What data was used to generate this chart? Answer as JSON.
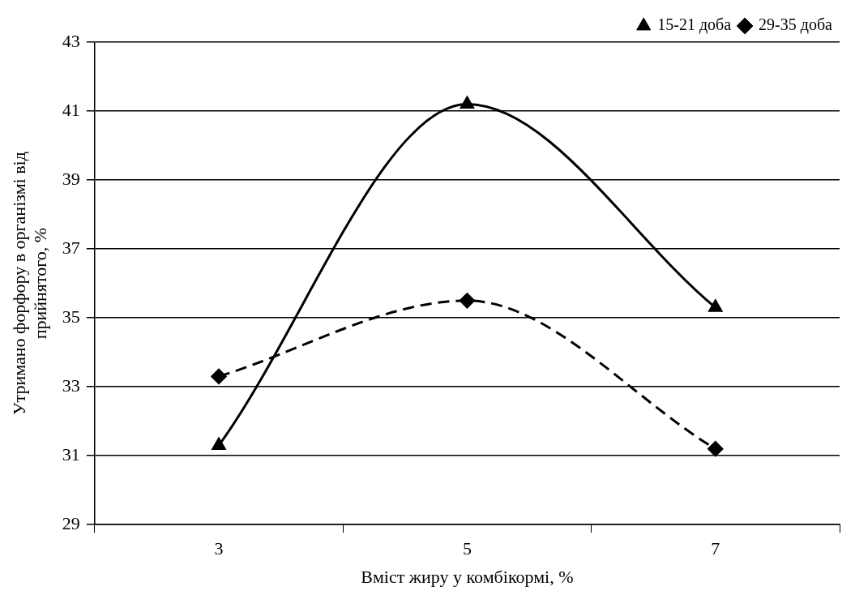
{
  "chart_data": {
    "type": "line",
    "xlabel": "Вміст жиру у комбікормі, %",
    "ylabel": "Утримано форфору в організмі від прийнятого, %",
    "categories": [
      "3",
      "5",
      "7"
    ],
    "series": [
      {
        "name": "15-21 доба",
        "color": "#000000",
        "values": [
          31.3,
          41.2,
          35.3
        ],
        "marker": "triangle",
        "line_style": "solid"
      },
      {
        "name": "29-35 доба",
        "color": "#000000",
        "values": [
          33.3,
          35.5,
          31.2
        ],
        "marker": "diamond",
        "line_style": "dashed"
      }
    ],
    "ylim": [
      29,
      43
    ],
    "yticks": [
      29,
      31,
      33,
      35,
      37,
      39,
      41,
      43
    ],
    "grid": "y",
    "legend": "top right"
  }
}
